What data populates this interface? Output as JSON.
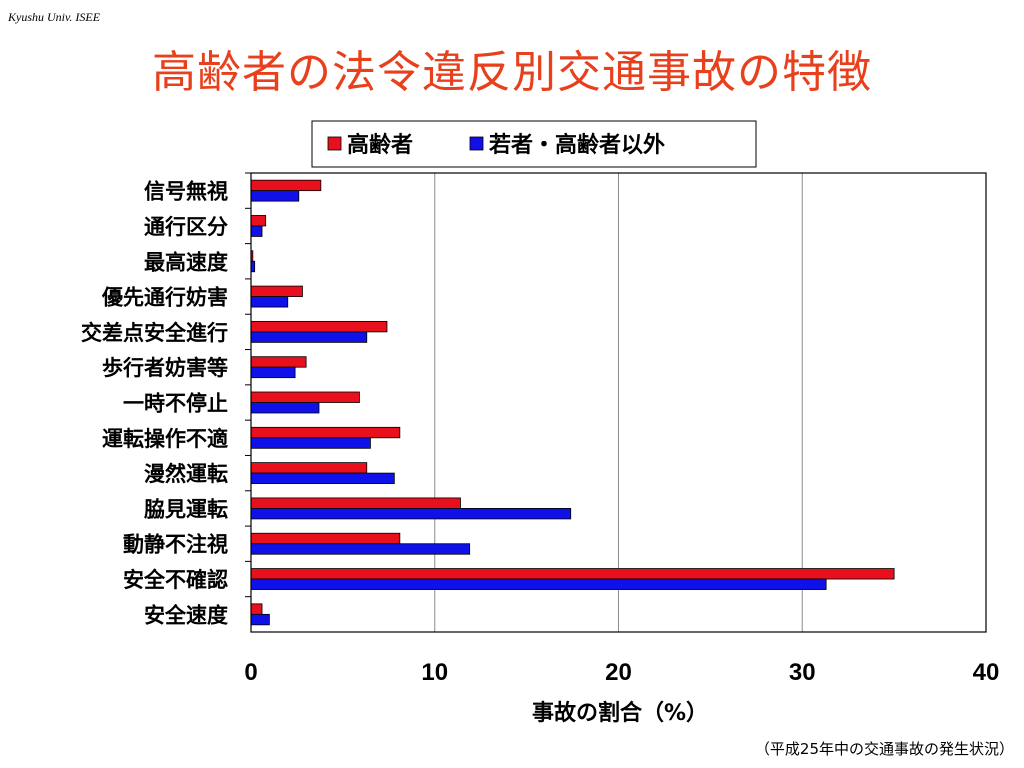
{
  "header": {
    "note": "Kyushu Univ. ISEE",
    "title": "高齢者の法令違反別交通事故の特徴"
  },
  "footer": {
    "source": "（平成25年中の交通事故の発生状況）"
  },
  "chart_data": {
    "type": "bar",
    "orientation": "horizontal",
    "categories": [
      "信号無視",
      "通行区分",
      "最高速度",
      "優先通行妨害",
      "交差点安全進行",
      "歩行者妨害等",
      "一時不停止",
      "運転操作不適",
      "漫然運転",
      "脇見運転",
      "動静不注視",
      "安全不確認",
      "安全速度"
    ],
    "series": [
      {
        "name": "高齢者",
        "color": "#e8101c",
        "values": [
          3.8,
          0.8,
          0.1,
          2.8,
          7.4,
          3.0,
          5.9,
          8.1,
          6.3,
          11.4,
          8.1,
          35.0,
          0.6
        ]
      },
      {
        "name": "若者・高齢者以外",
        "color": "#1010e8",
        "values": [
          2.6,
          0.6,
          0.2,
          2.0,
          6.3,
          2.4,
          3.7,
          6.5,
          7.8,
          17.4,
          11.9,
          31.3,
          1.0
        ]
      }
    ],
    "xlabel": "事故の割合（%）",
    "ylabel": "",
    "xlim": [
      0,
      40
    ],
    "xticks": [
      "0",
      "10",
      "20",
      "30",
      "40"
    ],
    "grid": true,
    "legend_position": "top"
  }
}
